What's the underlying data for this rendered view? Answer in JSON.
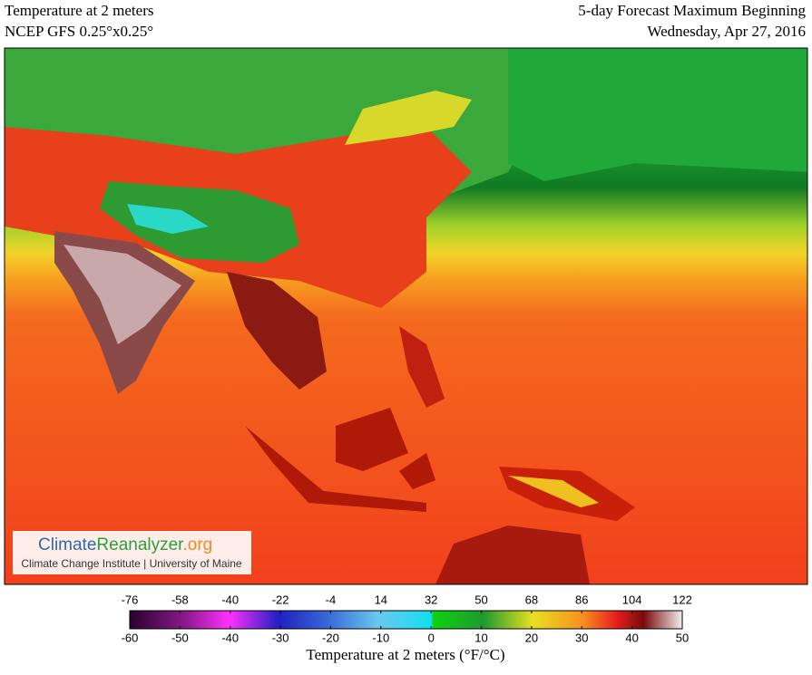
{
  "header": {
    "left": [
      "Temperature at 2 meters",
      "NCEP GFS 0.25°x0.25°"
    ],
    "right": [
      "5-day Forecast Maximum Beginning",
      "Wednesday, Apr 27, 2016"
    ]
  },
  "logo": {
    "name": [
      "Climate",
      "Reanalyzer",
      ".org"
    ],
    "subtitle": "Climate Change Institute | University of Maine"
  },
  "colorbar": {
    "fahrenheit_range": [
      -76,
      122
    ],
    "fahrenheit_ticks": [
      -76,
      -58,
      -40,
      -22,
      -4,
      14,
      32,
      50,
      68,
      86,
      104,
      122
    ],
    "celsius_range": [
      -60,
      50
    ],
    "celsius_ticks": [
      -60,
      -50,
      -40,
      -30,
      -20,
      -10,
      0,
      10,
      20,
      30,
      40,
      50
    ],
    "label": "Temperature at 2 meters (°F/°C)"
  }
}
